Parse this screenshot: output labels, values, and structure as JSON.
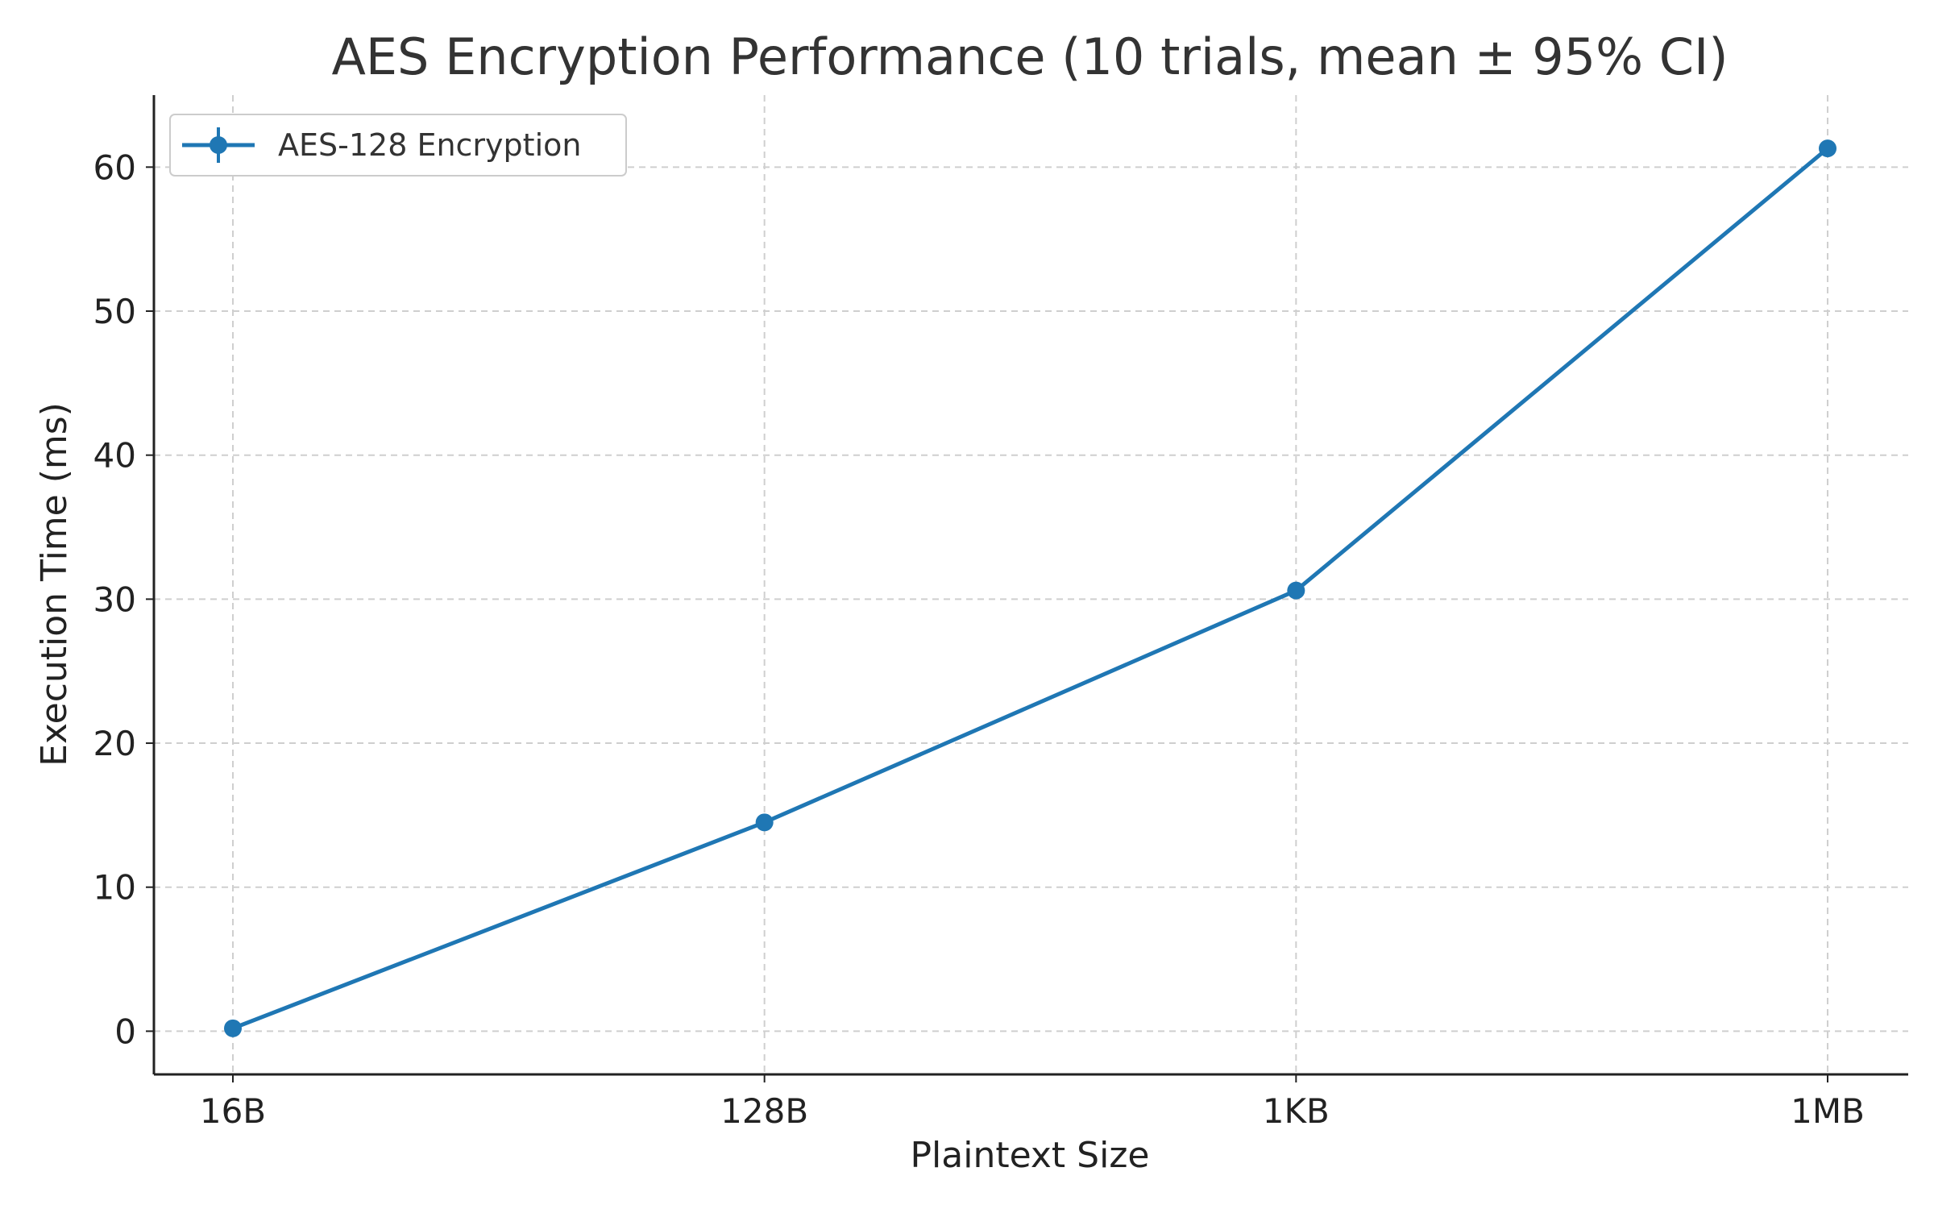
{
  "chart_data": {
    "type": "line",
    "title": "AES Encryption Performance (10 trials, mean ± 95% CI)",
    "xlabel": "Plaintext Size",
    "ylabel": "Execution Time (ms)",
    "categories": [
      "16B",
      "128B",
      "1KB",
      "1MB"
    ],
    "series": [
      {
        "name": "AES-128 Encryption",
        "values": [
          0.2,
          14.5,
          30.6,
          61.3
        ],
        "color": "#1f77b4",
        "marker": "circle",
        "error_bars": true
      }
    ],
    "ylim": [
      -3,
      65
    ],
    "yticks": [
      0,
      10,
      20,
      30,
      40,
      50,
      60
    ],
    "grid": true,
    "legend": "top-left"
  }
}
